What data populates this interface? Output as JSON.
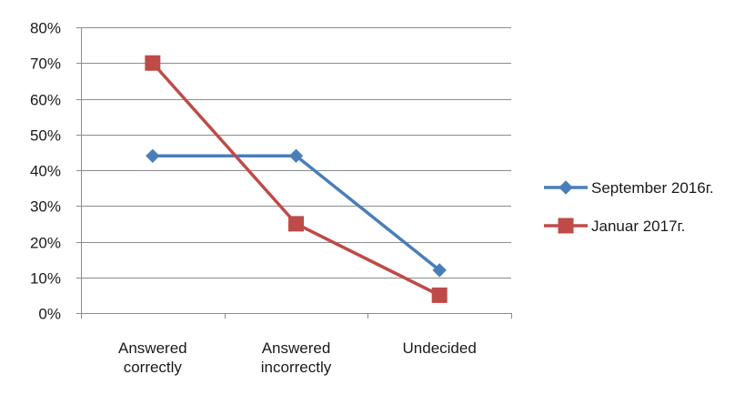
{
  "chart_data": {
    "type": "line",
    "categories": [
      [
        "Answered",
        "correctly"
      ],
      [
        "Answered",
        "incorrectly"
      ],
      [
        "Undecided"
      ]
    ],
    "ylim": [
      0,
      0.8
    ],
    "yticks": [
      0,
      0.1,
      0.2,
      0.3,
      0.4,
      0.5,
      0.6,
      0.7,
      0.8
    ],
    "ytick_labels": [
      "0%",
      "10%",
      "20%",
      "30%",
      "40%",
      "50%",
      "60%",
      "70%",
      "80%"
    ],
    "grid": true,
    "legend_position": "right",
    "series": [
      {
        "name": "September 2016г.",
        "values": [
          0.44,
          0.44,
          0.12
        ],
        "color": "#4a7ebb",
        "marker": "diamond"
      },
      {
        "name": "Januar 2017г.",
        "values": [
          0.7,
          0.25,
          0.05
        ],
        "color": "#be4b48",
        "marker": "square"
      }
    ]
  }
}
